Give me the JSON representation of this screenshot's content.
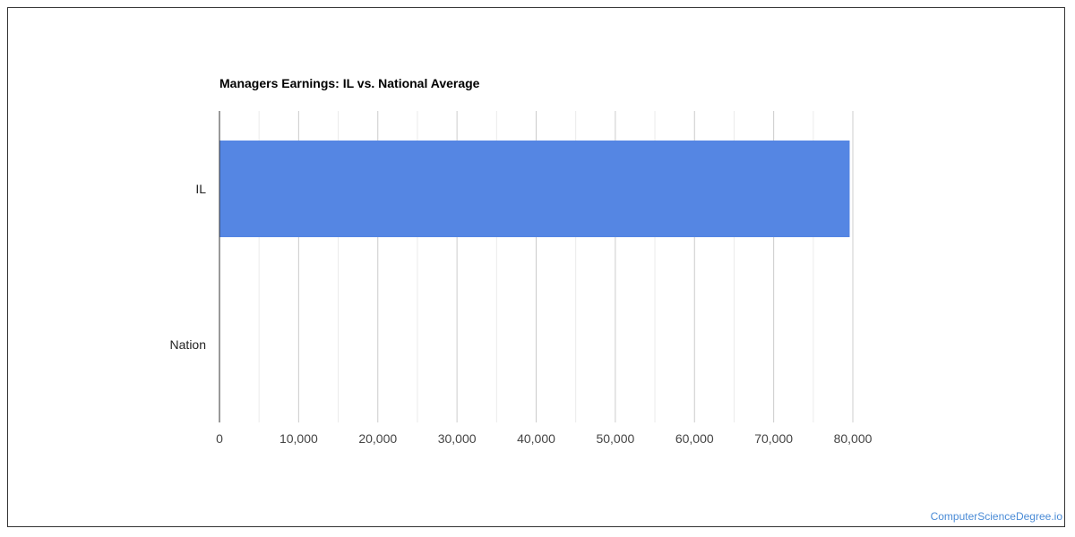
{
  "chart_data": {
    "type": "bar",
    "orientation": "horizontal",
    "title": "Managers Earnings: IL vs. National Average",
    "categories": [
      "IL",
      "Nation"
    ],
    "series": [
      {
        "values": [
          79600,
          0
        ],
        "color": "#5586e3"
      }
    ],
    "xlabel": "",
    "ylabel": "",
    "xlim": [
      0,
      80000
    ],
    "x_ticks": [
      0,
      10000,
      20000,
      30000,
      40000,
      50000,
      60000,
      70000,
      80000
    ],
    "x_tick_labels": [
      "0",
      "10,000",
      "20,000",
      "30,000",
      "40,000",
      "50,000",
      "60,000",
      "70,000",
      "80,000"
    ],
    "grid": true,
    "legend": "none"
  },
  "watermark": "ComputerScienceDegree.io"
}
